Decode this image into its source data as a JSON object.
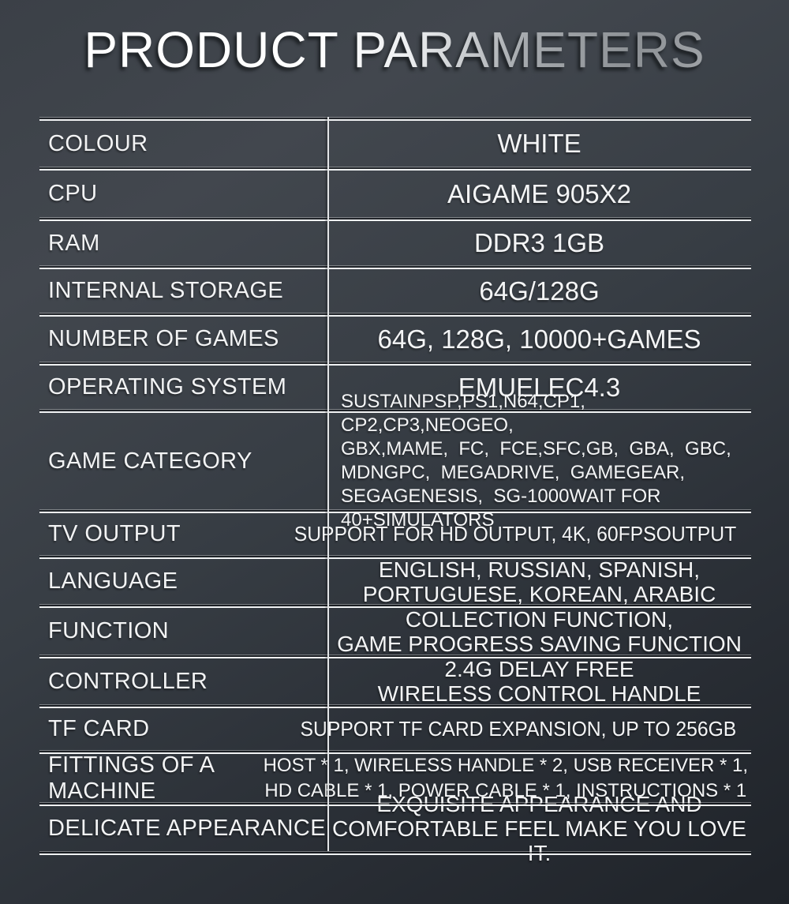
{
  "title": "PRODUCT PARAMETERS",
  "colors": {
    "background_top": "#3b4047",
    "background_bottom": "#1f2329",
    "text": "#f2f3f4",
    "grid_line": "#f0f2f3",
    "title_silver": "#8d9195"
  },
  "table": {
    "rows": [
      {
        "label": "COLOUR",
        "value": "WHITE"
      },
      {
        "label": "CPU",
        "value": "AIGAME 905X2"
      },
      {
        "label": "RAM",
        "value": "DDR3 1GB"
      },
      {
        "label": "INTERNAL STORAGE",
        "value": "64G/128G"
      },
      {
        "label": "NUMBER OF GAMES",
        "value": "64G, 128G, 10000+GAMES"
      },
      {
        "label": "OPERATING SYSTEM",
        "value": "EMUELEC4.3"
      },
      {
        "label": "GAME CATEGORY",
        "value_lines": [
          "SUSTAINPSP,PS1,N64,CP1,  CP2,CP3,NEOGEO,",
          "GBX,MAME,  FC,  FCE,SFC,GB,  GBA,  GBC,",
          "MDNGPC,  MEGADRIVE,  GAMEGEAR,",
          "SEGAGENESIS,  SG-1000WAIT FOR 40+SIMULATORS"
        ]
      },
      {
        "label": "TV OUTPUT",
        "value": "SUPPORT FOR HD OUTPUT, 4K, 60FPSOUTPUT"
      },
      {
        "label": "LANGUAGE",
        "value_lines": [
          "ENGLISH, RUSSIAN, SPANISH,",
          "PORTUGUESE, KOREAN, ARABIC"
        ]
      },
      {
        "label": "FUNCTION",
        "value_lines": [
          "COLLECTION FUNCTION,",
          "GAME PROGRESS SAVING FUNCTION"
        ]
      },
      {
        "label": "CONTROLLER",
        "value_lines": [
          "2.4G DELAY FREE",
          "WIRELESS CONTROL HANDLE"
        ]
      },
      {
        "label": "TF CARD",
        "value": "SUPPORT TF CARD EXPANSION, UP TO 256GB"
      },
      {
        "label": "FITTINGS OF A MACHINE",
        "value_lines": [
          "HOST * 1, WIRELESS HANDLE * 2, USB RECEIVER * 1,",
          "HD CABLE * 1, POWER CABLE * 1, INSTRUCTIONS * 1"
        ]
      },
      {
        "label": "DELICATE APPEARANCE",
        "value_lines": [
          "EXQUISITE APPEARANCE AND",
          "COMFORTABLE FEEL MAKE YOU LOVE IT."
        ]
      }
    ]
  }
}
